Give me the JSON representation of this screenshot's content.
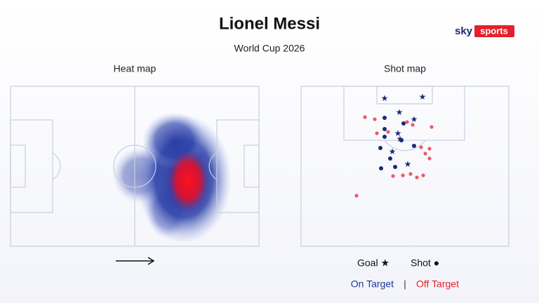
{
  "header": {
    "title": "Lionel Messi",
    "subtitle": "World Cup 2026",
    "logo": {
      "brand": "sky",
      "product": "sports"
    }
  },
  "heat_map": {
    "title": "Heat map"
  },
  "shot_map": {
    "title": "Shot map",
    "legend": {
      "goal": "Goal ★",
      "shot": "Shot ●",
      "on_target": "On Target",
      "separator": "|",
      "off_target": "Off Target"
    }
  }
}
